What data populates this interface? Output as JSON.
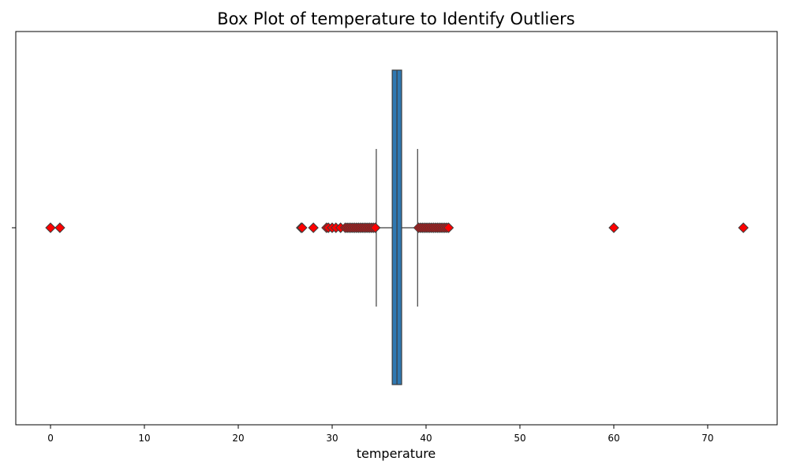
{
  "chart_data": {
    "type": "box",
    "title": "Box Plot of temperature to Identify Outliers",
    "xlabel": "temperature",
    "ylabel": "",
    "xlim": [
      -3.7,
      77.4
    ],
    "xticks": [
      0,
      10,
      20,
      30,
      40,
      50,
      60,
      70
    ],
    "xtick_labels": [
      "0",
      "10",
      "20",
      "30",
      "40",
      "50",
      "60",
      "70"
    ],
    "grid": false,
    "legend": "none",
    "box": {
      "q1": 36.4,
      "median": 36.9,
      "q3": 37.4,
      "whisker_low": 34.7,
      "whisker_high": 39.1
    },
    "outliers": [
      0.0,
      1.0,
      26.7,
      26.8,
      28.0,
      29.4,
      29.6,
      30.0,
      30.4,
      30.9,
      31.4,
      31.6,
      31.8,
      32.0,
      32.2,
      32.4,
      32.6,
      32.8,
      33.0,
      33.2,
      33.4,
      33.6,
      33.8,
      34.0,
      34.2,
      34.4,
      34.6,
      39.2,
      39.4,
      39.6,
      39.8,
      40.0,
      40.2,
      40.4,
      40.6,
      40.8,
      41.0,
      41.2,
      41.4,
      41.6,
      41.8,
      42.0,
      42.2,
      42.4,
      60.0,
      73.8
    ],
    "colors": {
      "box_fill": "#2f78b1",
      "line": "#3d3d3d",
      "outlier_fill": "#ff0000",
      "outlier_edge": "#3d3d3d"
    }
  }
}
